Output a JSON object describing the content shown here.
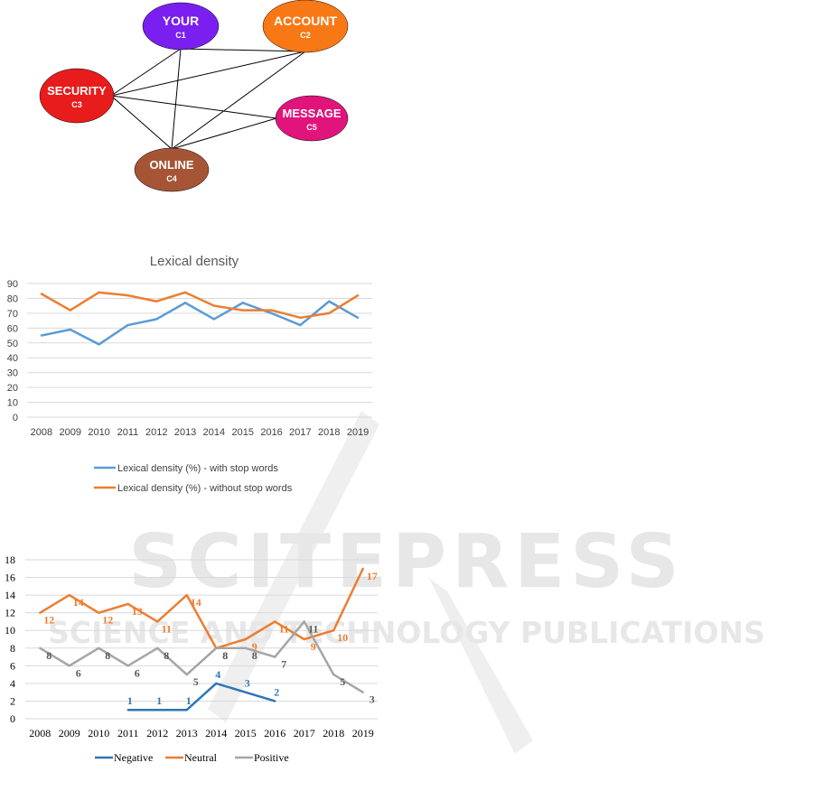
{
  "network": {
    "nodes": [
      {
        "id": "c1",
        "label": "YOUR",
        "code": "C1",
        "color": "#7a1ff0"
      },
      {
        "id": "c2",
        "label": "ACCOUNT",
        "code": "C2",
        "color": "#f87816"
      },
      {
        "id": "c3",
        "label": "SECURITY",
        "code": "C3",
        "color": "#e81c1c"
      },
      {
        "id": "c4",
        "label": "ONLINE",
        "code": "C4",
        "color": "#a55536"
      },
      {
        "id": "c5",
        "label": "MESSAGE",
        "code": "C5",
        "color": "#e0147a"
      }
    ],
    "edges": [
      [
        "c1",
        "c2"
      ],
      [
        "c1",
        "c3"
      ],
      [
        "c1",
        "c4"
      ],
      [
        "c2",
        "c3"
      ],
      [
        "c2",
        "c4"
      ],
      [
        "c3",
        "c4"
      ],
      [
        "c3",
        "c5"
      ],
      [
        "c4",
        "c5"
      ]
    ]
  },
  "watermark": {
    "line1": "SCITEPRESS",
    "line2": "SCIENCE AND TECHNOLOGY PUBLICATIONS"
  },
  "chart_data": [
    {
      "type": "line",
      "title": "Lexical density",
      "categories": [
        "2008",
        "2009",
        "2010",
        "2011",
        "2012",
        "2013",
        "2014",
        "2015",
        "2016",
        "2017",
        "2018",
        "2019"
      ],
      "ylim": [
        0,
        90
      ],
      "yticks": [
        0,
        10,
        20,
        30,
        40,
        50,
        60,
        70,
        80,
        90
      ],
      "grid": true,
      "legend_position": "bottom",
      "series": [
        {
          "name": "Lexical density (%) - with stop words",
          "color": "#5b9bd5",
          "values": [
            55,
            59,
            49,
            62,
            66,
            77,
            66,
            77,
            70,
            62,
            78,
            67
          ]
        },
        {
          "name": "Lexical density (%) - without stop words",
          "color": "#ed7d31",
          "values": [
            83,
            72,
            84,
            82,
            78,
            84,
            75,
            72,
            72,
            67,
            70,
            82
          ]
        }
      ]
    },
    {
      "type": "line",
      "title": "",
      "categories": [
        "2008",
        "2009",
        "2010",
        "2011",
        "2012",
        "2013",
        "2014",
        "2015",
        "2016",
        "2017",
        "2018",
        "2019"
      ],
      "ylim": [
        0,
        18
      ],
      "yticks": [
        0,
        2,
        4,
        6,
        8,
        10,
        12,
        14,
        16,
        18
      ],
      "grid": true,
      "legend_position": "bottom",
      "series": [
        {
          "name": "Negative",
          "color": "#2e75b6",
          "label_color": "#2e75b6",
          "values": [
            null,
            null,
            null,
            1,
            1,
            1,
            4,
            3,
            2,
            null,
            null,
            null
          ]
        },
        {
          "name": "Neutral",
          "color": "#ed7d31",
          "label_color": "#ed7d31",
          "values": [
            12,
            14,
            12,
            13,
            11,
            14,
            8,
            9,
            11,
            9,
            10,
            17
          ]
        },
        {
          "name": "Positive",
          "color": "#a5a5a5",
          "label_color": "#595959",
          "values": [
            8,
            6,
            8,
            6,
            8,
            5,
            8,
            8,
            7,
            11,
            5,
            3
          ]
        }
      ]
    }
  ]
}
